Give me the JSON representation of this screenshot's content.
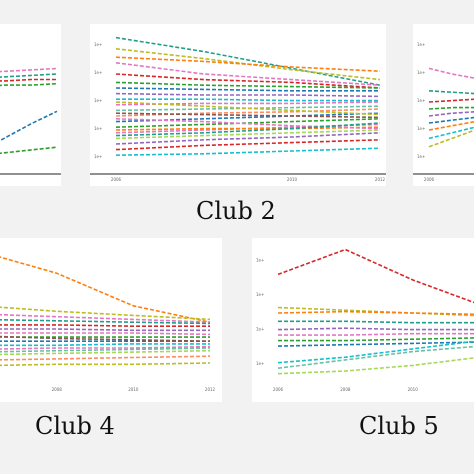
{
  "captions": {
    "club2": "Club 2",
    "club4": "Club 4",
    "club5": "Club 5"
  },
  "palette": [
    "#e377c2",
    "#1f9e89",
    "#2ca02c",
    "#d62728",
    "#1f77b4",
    "#9467bd",
    "#bcbd22",
    "#17becf",
    "#ff7f0e",
    "#8c564b",
    "#7f7f7f",
    "#66c2a5",
    "#fc8d62",
    "#a6d854"
  ],
  "chart_data": [
    {
      "type": "line",
      "panel": "club1-partial",
      "line_style": "dashed",
      "x": [
        0,
        1,
        2,
        3
      ],
      "xtick_labels": [
        "",
        "",
        "",
        ""
      ],
      "ytick_labels": [],
      "ylim": [
        0,
        10
      ],
      "series": [
        {
          "values": [
            7.2,
            7.3,
            7.4,
            7.5
          ],
          "color": "#e377c2"
        },
        {
          "values": [
            6.8,
            6.9,
            7.0,
            7.1
          ],
          "color": "#1f9e89"
        },
        {
          "values": [
            6.2,
            6.3,
            6.3,
            6.4
          ],
          "color": "#2ca02c"
        },
        {
          "values": [
            1.5,
            2.5,
            3.5,
            4.4
          ],
          "color": "#1f77b4"
        },
        {
          "values": [
            1.2,
            1.4,
            1.6,
            1.8
          ],
          "color": "#2ca02c"
        },
        {
          "values": [
            6.6,
            6.6,
            6.7,
            6.7
          ],
          "color": "#d62728"
        }
      ]
    },
    {
      "type": "line",
      "panel": "club2",
      "line_style": "dashed",
      "x": [
        0,
        1,
        2,
        3
      ],
      "xtick_labels": [
        "2006",
        "",
        "2010",
        "2012"
      ],
      "ytick_labels": [
        "1e+",
        "1e+",
        "1e+",
        "1e+",
        "1e+"
      ],
      "ylim": [
        0,
        10
      ],
      "series": [
        {
          "values": [
            9.6,
            8.6,
            7.4,
            6.2
          ],
          "color": "#1f9e89"
        },
        {
          "values": [
            8.8,
            8.1,
            7.3,
            6.6
          ],
          "color": "#bcbd22"
        },
        {
          "values": [
            8.2,
            7.9,
            7.5,
            7.2
          ],
          "color": "#ff7f0e"
        },
        {
          "values": [
            7.8,
            7.0,
            6.6,
            6.2
          ],
          "color": "#e377c2"
        },
        {
          "values": [
            7.0,
            6.6,
            6.4,
            6.0
          ],
          "color": "#d62728"
        },
        {
          "values": [
            6.4,
            6.2,
            6.1,
            6.0
          ],
          "color": "#2ca02c"
        },
        {
          "values": [
            6.0,
            5.9,
            5.8,
            5.8
          ],
          "color": "#1f77b4"
        },
        {
          "values": [
            5.6,
            5.5,
            5.5,
            5.4
          ],
          "color": "#9467bd"
        },
        {
          "values": [
            5.2,
            5.2,
            5.1,
            5.1
          ],
          "color": "#17becf"
        },
        {
          "values": [
            4.8,
            4.9,
            4.9,
            5.0
          ],
          "color": "#e377c2"
        },
        {
          "values": [
            4.4,
            4.5,
            4.6,
            4.7
          ],
          "color": "#66c2a5"
        },
        {
          "values": [
            4.0,
            4.2,
            4.3,
            4.5
          ],
          "color": "#fc8d62"
        },
        {
          "values": [
            3.6,
            3.8,
            4.0,
            4.2
          ],
          "color": "#1f77b4"
        },
        {
          "values": [
            3.2,
            3.4,
            3.6,
            3.8
          ],
          "color": "#2ca02c"
        },
        {
          "values": [
            2.8,
            3.0,
            3.2,
            3.4
          ],
          "color": "#e377c2"
        },
        {
          "values": [
            2.4,
            2.6,
            2.8,
            3.0
          ],
          "color": "#a6d854"
        },
        {
          "values": [
            2.0,
            2.3,
            2.5,
            2.8
          ],
          "color": "#9467bd"
        },
        {
          "values": [
            1.6,
            1.9,
            2.1,
            2.3
          ],
          "color": "#d62728"
        },
        {
          "values": [
            1.2,
            1.3,
            1.5,
            1.7
          ],
          "color": "#17becf"
        },
        {
          "values": [
            3.0,
            3.1,
            3.1,
            3.2
          ],
          "color": "#ff7f0e"
        },
        {
          "values": [
            4.2,
            4.1,
            4.0,
            3.9
          ],
          "color": "#8c564b"
        },
        {
          "values": [
            5.0,
            4.7,
            4.4,
            4.1
          ],
          "color": "#bcbd22"
        },
        {
          "values": [
            3.8,
            3.6,
            3.3,
            3.1
          ],
          "color": "#e377c2"
        },
        {
          "values": [
            2.6,
            2.8,
            3.1,
            3.5
          ],
          "color": "#1f9e89"
        }
      ]
    },
    {
      "type": "line",
      "panel": "club3-partial",
      "line_style": "dashed",
      "x": [
        0,
        1,
        2,
        3
      ],
      "xtick_labels": [
        "2006",
        "",
        "",
        ""
      ],
      "ytick_labels": [
        "1e+",
        "1e+",
        "1e+",
        "1e+",
        "1e+"
      ],
      "ylim": [
        0,
        10
      ],
      "series": [
        {
          "values": [
            7.4,
            7.0,
            6.7,
            6.4
          ],
          "color": "#e377c2"
        },
        {
          "values": [
            5.8,
            5.7,
            5.6,
            5.5
          ],
          "color": "#1f9e89"
        },
        {
          "values": [
            5.0,
            5.1,
            5.2,
            5.3
          ],
          "color": "#d62728"
        },
        {
          "values": [
            4.5,
            4.6,
            4.6,
            4.7
          ],
          "color": "#2ca02c"
        },
        {
          "values": [
            4.0,
            4.2,
            4.3,
            4.5
          ],
          "color": "#9467bd"
        },
        {
          "values": [
            3.5,
            3.7,
            3.9,
            4.1
          ],
          "color": "#1f77b4"
        },
        {
          "values": [
            3.0,
            3.3,
            3.6,
            3.9
          ],
          "color": "#ff7f0e"
        },
        {
          "values": [
            2.4,
            2.8,
            3.2,
            3.6
          ],
          "color": "#17becf"
        },
        {
          "values": [
            1.8,
            2.4,
            3.0,
            3.6
          ],
          "color": "#bcbd22"
        }
      ]
    },
    {
      "type": "line",
      "panel": "club4",
      "line_style": "dashed",
      "x": [
        0,
        1,
        2,
        3
      ],
      "xtick_labels": [
        "",
        "2008",
        "2010",
        "2012"
      ],
      "ytick_labels": [],
      "ylim": [
        0,
        10
      ],
      "series": [
        {
          "values": [
            9.6,
            8.0,
            5.6,
            4.4
          ],
          "color": "#ff7f0e"
        },
        {
          "values": [
            5.6,
            5.2,
            4.9,
            4.6
          ],
          "color": "#bcbd22"
        },
        {
          "values": [
            5.0,
            4.8,
            4.6,
            4.4
          ],
          "color": "#e377c2"
        },
        {
          "values": [
            4.6,
            4.5,
            4.4,
            4.3
          ],
          "color": "#1f9e89"
        },
        {
          "values": [
            4.2,
            4.2,
            4.1,
            4.1
          ],
          "color": "#d62728"
        },
        {
          "values": [
            3.9,
            3.9,
            3.8,
            3.8
          ],
          "color": "#9467bd"
        },
        {
          "values": [
            3.6,
            3.6,
            3.6,
            3.5
          ],
          "color": "#e377c2"
        },
        {
          "values": [
            3.3,
            3.3,
            3.3,
            3.3
          ],
          "color": "#2ca02c"
        },
        {
          "values": [
            3.0,
            3.0,
            3.0,
            3.0
          ],
          "color": "#1f77b4"
        },
        {
          "values": [
            2.7,
            2.7,
            2.8,
            2.8
          ],
          "color": "#17becf"
        },
        {
          "values": [
            2.4,
            2.5,
            2.5,
            2.6
          ],
          "color": "#e377c2"
        },
        {
          "values": [
            2.0,
            2.1,
            2.2,
            2.3
          ],
          "color": "#a6d854"
        },
        {
          "values": [
            1.6,
            1.7,
            1.8,
            1.9
          ],
          "color": "#fc8d62"
        },
        {
          "values": [
            1.2,
            1.3,
            1.3,
            1.4
          ],
          "color": "#bcbd22"
        },
        {
          "values": [
            3.4,
            3.2,
            3.1,
            3.0
          ],
          "color": "#8c564b"
        },
        {
          "values": [
            2.2,
            2.3,
            2.4,
            2.5
          ],
          "color": "#66c2a5"
        }
      ]
    },
    {
      "type": "line",
      "panel": "club5",
      "line_style": "dashed",
      "x": [
        0,
        1,
        2,
        3
      ],
      "xtick_labels": [
        "2006",
        "2008",
        "2010",
        ""
      ],
      "ytick_labels": [
        "1e+",
        "1e+",
        "1e+",
        "1e+"
      ],
      "ylim": [
        0,
        10
      ],
      "series": [
        {
          "values": [
            7.8,
            9.6,
            7.4,
            5.6
          ],
          "color": "#d62728"
        },
        {
          "values": [
            5.4,
            5.2,
            5.0,
            4.8
          ],
          "color": "#bcbd22"
        },
        {
          "values": [
            5.0,
            5.1,
            5.0,
            4.9
          ],
          "color": "#ff7f0e"
        },
        {
          "values": [
            4.4,
            4.4,
            4.3,
            4.3
          ],
          "color": "#1f9e89"
        },
        {
          "values": [
            3.8,
            3.9,
            3.8,
            3.8
          ],
          "color": "#9467bd"
        },
        {
          "values": [
            3.4,
            3.4,
            3.5,
            3.5
          ],
          "color": "#e377c2"
        },
        {
          "values": [
            3.0,
            3.0,
            3.1,
            3.2
          ],
          "color": "#2ca02c"
        },
        {
          "values": [
            2.6,
            2.7,
            2.8,
            2.9
          ],
          "color": "#1f77b4"
        },
        {
          "values": [
            1.4,
            1.8,
            2.4,
            3.0
          ],
          "color": "#17becf"
        },
        {
          "values": [
            1.0,
            1.6,
            2.2,
            2.6
          ],
          "color": "#66c2a5"
        },
        {
          "values": [
            0.6,
            0.8,
            1.2,
            1.8
          ],
          "color": "#a6d854"
        }
      ]
    }
  ]
}
